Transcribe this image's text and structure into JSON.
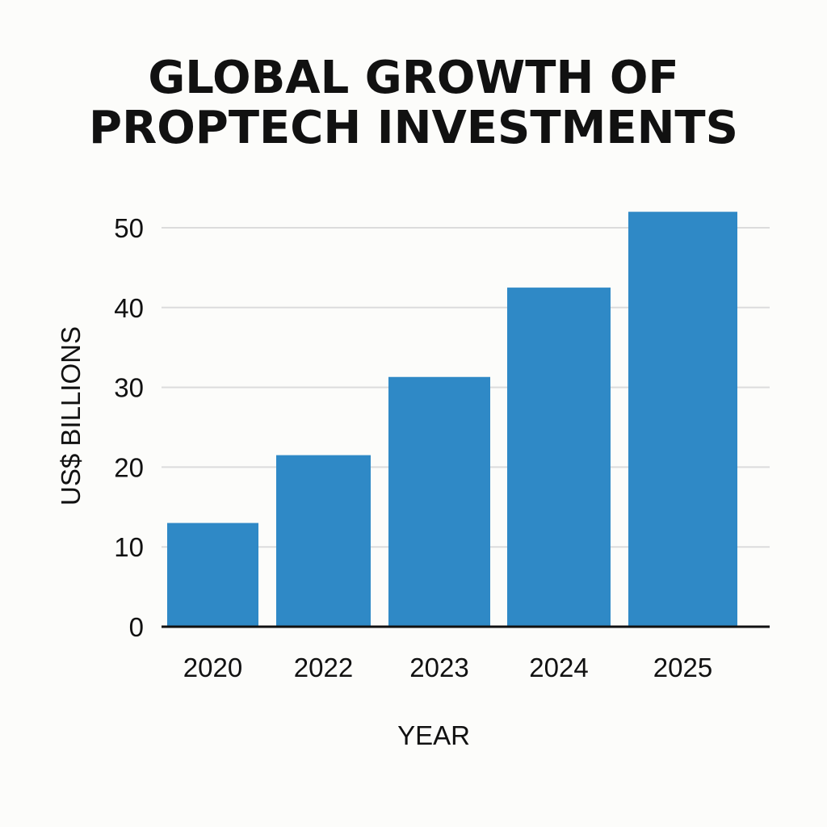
{
  "title_lines": [
    "GLOBAL GROWTH OF",
    "PROPTECH INVESTMENTS"
  ],
  "chart_data": {
    "type": "bar",
    "title": "GLOBAL GROWTH OF PROPTECH INVESTMENTS",
    "xlabel": "YEAR",
    "ylabel": "US$ BILLIONS",
    "categories": [
      "2020",
      "2022",
      "2023",
      "2024",
      "2025"
    ],
    "values": [
      13,
      21.5,
      31.3,
      42.5,
      52
    ],
    "ylim": [
      0,
      50
    ],
    "yticks": [
      0,
      10,
      20,
      30,
      40,
      50
    ],
    "grid": true,
    "legend": "none",
    "colors": {
      "bar": "#2f89c6",
      "grid": "#dcdcdc",
      "axis": "#111111"
    }
  }
}
